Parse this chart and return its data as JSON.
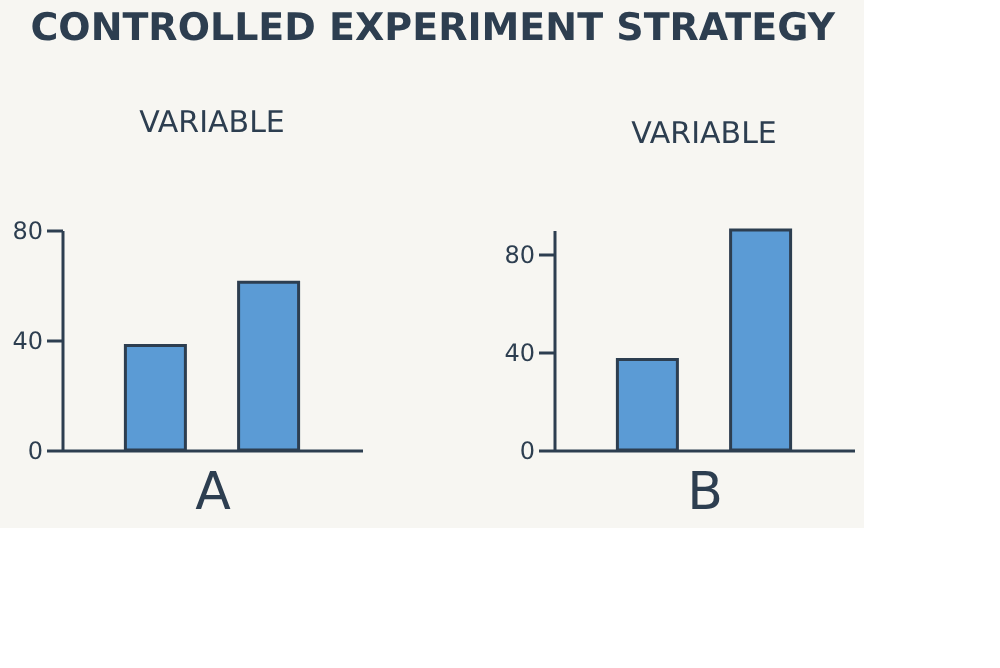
{
  "chart_data": [
    {
      "type": "bar",
      "title": "CONTROLLED EXPERIMENT STRATEGY",
      "annotations": [
        "VARIABLE"
      ],
      "xlabel": "A",
      "categories": [
        null,
        null
      ],
      "values": [
        38,
        61
      ],
      "color": "#5b9bd5",
      "ylim": [
        0,
        80
      ],
      "yticks": [
        0,
        40,
        80
      ],
      "grid": false
    },
    {
      "type": "bar",
      "annotations": [
        "VARIABLE"
      ],
      "xlabel": "B",
      "categories": [
        null,
        null
      ],
      "values": [
        37,
        90
      ],
      "color": "#5b9bd5",
      "ylim": [
        0,
        90
      ],
      "yticks": [
        0,
        40,
        80
      ],
      "grid": false
    }
  ]
}
